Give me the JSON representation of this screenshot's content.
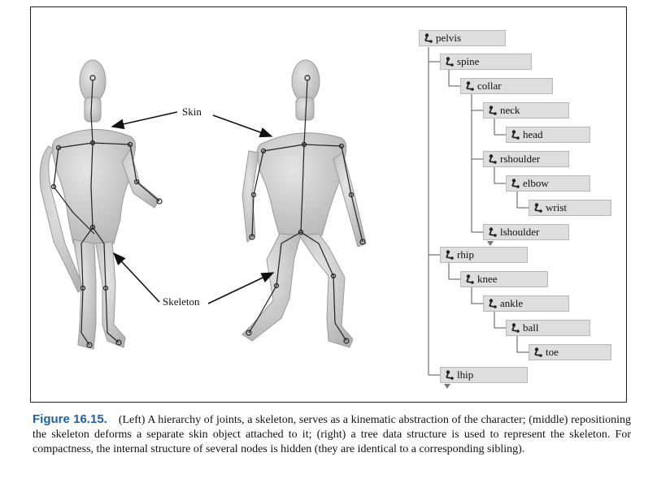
{
  "callouts": {
    "skin": "Skin",
    "skeleton": "Skeleton"
  },
  "tree": {
    "nodes": [
      {
        "label": "pelvis",
        "icon": "joint-icon"
      },
      {
        "label": "spine",
        "icon": "joint-icon"
      },
      {
        "label": "collar",
        "icon": "joint-icon"
      },
      {
        "label": "neck",
        "icon": "joint-icon"
      },
      {
        "label": "head",
        "icon": "joint-icon"
      },
      {
        "label": "rshoulder",
        "icon": "joint-icon"
      },
      {
        "label": "elbow",
        "icon": "joint-icon"
      },
      {
        "label": "wrist",
        "icon": "joint-icon"
      },
      {
        "label": "lshoulder",
        "icon": "joint-icon"
      },
      {
        "label": "rhip",
        "icon": "joint-icon"
      },
      {
        "label": "knee",
        "icon": "joint-icon"
      },
      {
        "label": "ankle",
        "icon": "joint-icon"
      },
      {
        "label": "ball",
        "icon": "joint-icon"
      },
      {
        "label": "toe",
        "icon": "joint-icon"
      },
      {
        "label": "lhip",
        "icon": "joint-icon"
      }
    ]
  },
  "caption": {
    "figure_label": "Figure 16.15.",
    "text": "(Left) A hierarchy of joints, a skeleton, serves as a kinematic abstraction of the character; (middle) repositioning the skeleton deforms a separate skin object attached to it; (right) a tree data structure is used to represent the skeleton. For compactness, the internal structure of several nodes is hidden (they are identical to a corresponding sibling)."
  },
  "colors": {
    "figure_label": "#1f5fa8",
    "node_fill": "#dedede",
    "skin_fill": "#c9c9c9"
  }
}
